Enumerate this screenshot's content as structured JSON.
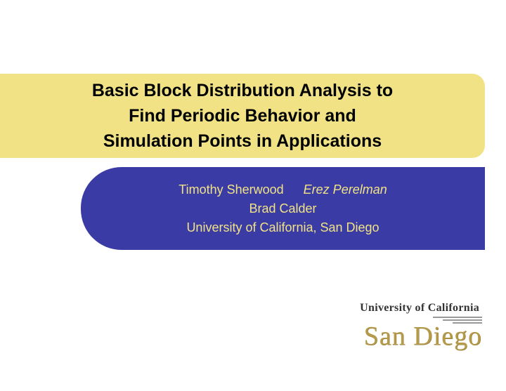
{
  "slide": {
    "background_color": "#ffffff",
    "title": {
      "lines": [
        "Basic Block Distribution Analysis to",
        "Find Periodic Behavior and",
        "Simulation Points in Applications"
      ],
      "band_color": "#f1e385",
      "text_color": "#000000",
      "font_size": 25,
      "font_weight": "bold",
      "corner_radius": 18
    },
    "authors": {
      "row1": {
        "name1": "Timothy Sherwood",
        "name2": "Erez Perelman",
        "name2_italic": true
      },
      "row2": "Brad Calder",
      "affiliation": "University of California, San Diego",
      "band_color": "#3a3ba5",
      "text_color": "#f1e385",
      "font_size": 18,
      "corner_radius": 58
    },
    "logo": {
      "top_text": "University of California",
      "bottom_text": "San Diego",
      "top_color": "#333333",
      "bottom_color": "#b59a4a",
      "line_color": "#999999",
      "top_font_size": 16,
      "bottom_font_size": 38
    }
  }
}
